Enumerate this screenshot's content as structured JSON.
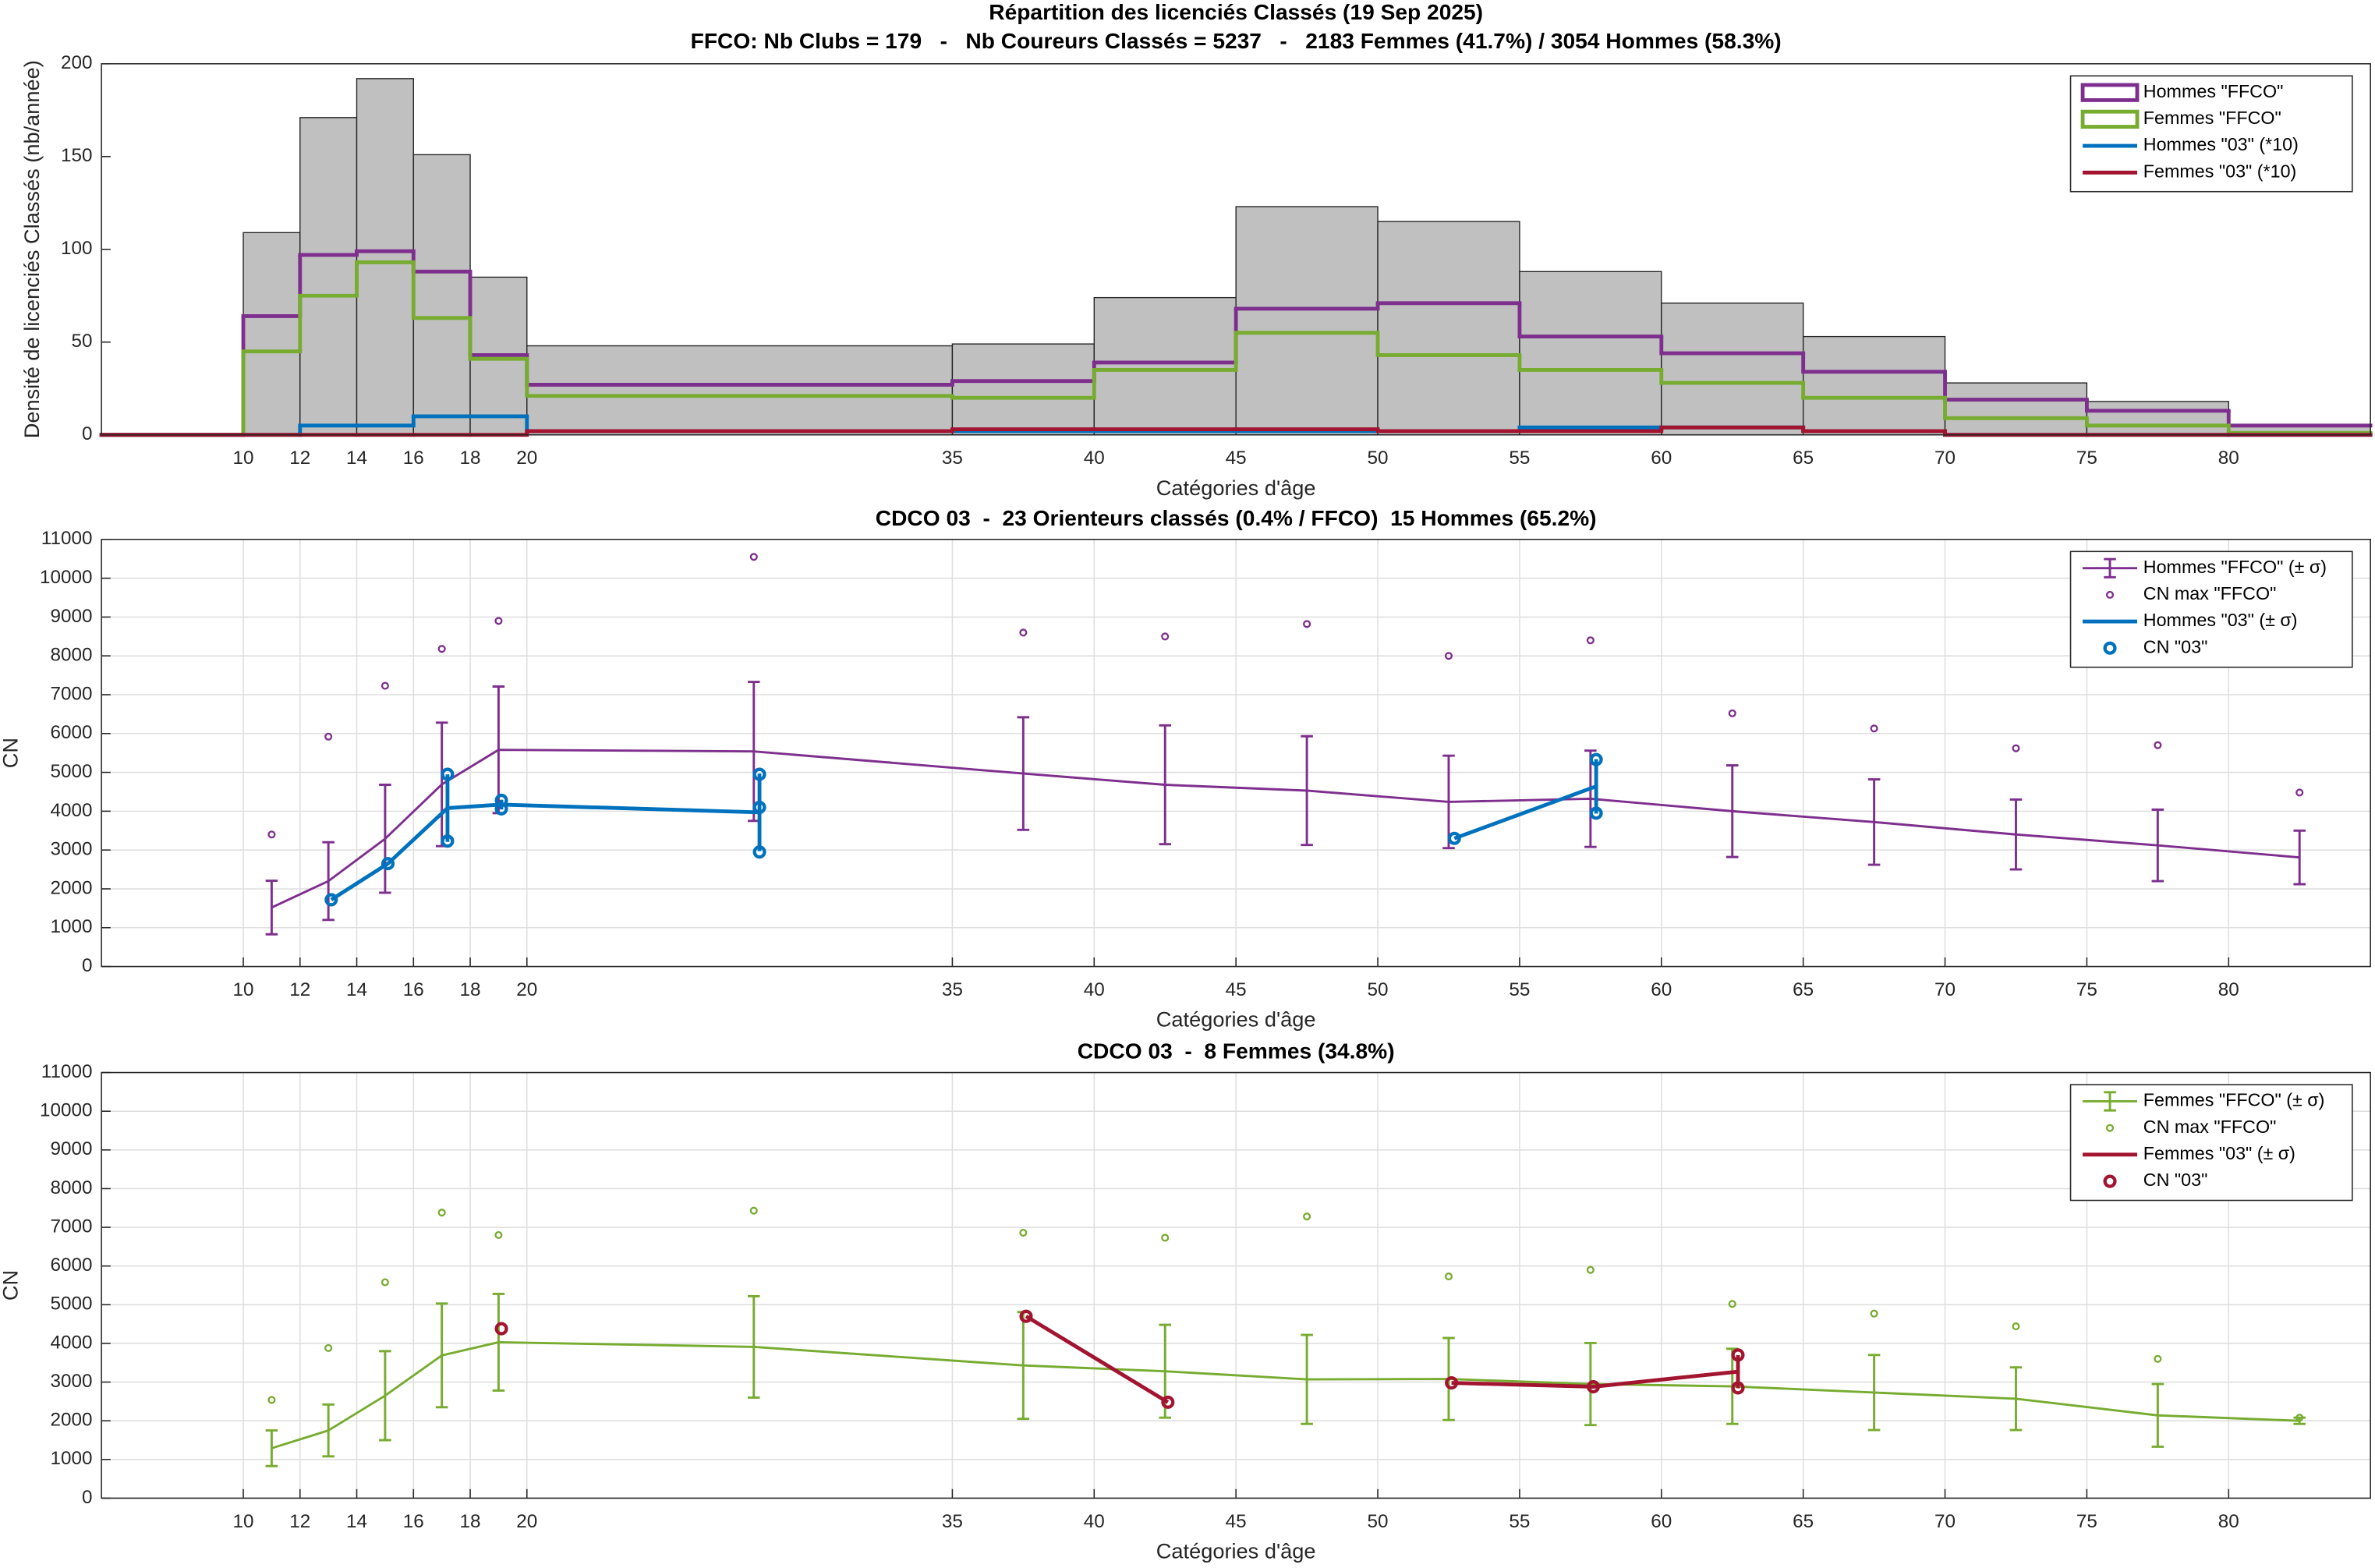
{
  "chart_data": [
    {
      "type": "histogram",
      "title": "Répartition des licenciés Classés (19 Sep 2025)",
      "subtitle": "FFCO: Nb Clubs = 179   -   Nb Coureurs Classés = 5237   -   2183 Femmes (41.7%) / 3054 Hommes (58.3%)",
      "xlabel": "Catégories d'âge",
      "ylabel": "Densité de licenciés Classés (nb/année)",
      "bins": [
        5,
        10,
        12,
        14,
        16,
        18,
        20,
        35,
        40,
        45,
        50,
        55,
        60,
        65,
        70,
        75,
        80,
        85
      ],
      "values": [
        0,
        109,
        171,
        192,
        151,
        85,
        48,
        49,
        74,
        123,
        115,
        88,
        71,
        53,
        28,
        18,
        5
      ],
      "color": "#c0c0c0",
      "series": [
        {
          "name": "Hommes \"FFCO\"",
          "color": "#7e2f8e",
          "legend_marker": "rect",
          "values": [
            0,
            64,
            97,
            99,
            88,
            43,
            27,
            29,
            39,
            68,
            71,
            53,
            44,
            34,
            19,
            13,
            5
          ]
        },
        {
          "name": "Femmes \"FFCO\"",
          "color": "#77ac30",
          "legend_marker": "rect",
          "values": [
            0,
            45,
            75,
            93,
            63,
            41,
            21,
            20,
            35,
            55,
            43,
            35,
            28,
            20,
            9,
            5,
            1
          ]
        },
        {
          "name": "Hommes \"03\" (*10)",
          "color": "#0072bd",
          "legend_marker": "line",
          "values": [
            0,
            0,
            5,
            5,
            10,
            10,
            2,
            2,
            2,
            2,
            2,
            4,
            4,
            2,
            0,
            0,
            0
          ]
        },
        {
          "name": "Femmes \"03\" (*10)",
          "color": "#a2142f",
          "legend_marker": "line",
          "values": [
            0,
            0,
            0,
            0,
            0,
            0,
            2,
            3,
            3,
            3,
            2,
            2,
            4,
            2,
            0,
            0,
            0
          ]
        }
      ],
      "xlim": [
        5,
        85
      ],
      "xticks": [
        10,
        12,
        14,
        16,
        18,
        20,
        35,
        40,
        45,
        50,
        55,
        60,
        65,
        70,
        75,
        80
      ],
      "ylim": [
        0,
        200
      ],
      "yticks": [
        0,
        50,
        100,
        150,
        200
      ],
      "grid": false,
      "legend": "northeast"
    },
    {
      "type": "errorbar",
      "title": "CDCO 03  -  23 Orienteurs classés (0.4% / FFCO)  15 Hommes (65.2%)",
      "xlabel": "Catégories d'âge",
      "ylabel": "CN",
      "series": [
        {
          "name": "Hommes \"FFCO\" (± σ)",
          "color": "#7e2f8e",
          "style": "errorbar",
          "caps": true,
          "x": [
            11,
            13,
            15,
            17,
            19,
            28,
            37.5,
            42.5,
            47.5,
            52.5,
            57.5,
            62.5,
            67.5,
            72.5,
            77.5,
            82.5
          ],
          "values": [
            1520,
            2200,
            3290,
            4690,
            5580,
            5540,
            4970,
            4680,
            4530,
            4240,
            4320,
            4000,
            3720,
            3400,
            3120,
            2810
          ],
          "errors": [
            690,
            1000,
            1390,
            1590,
            1630,
            1790,
            1450,
            1530,
            1400,
            1190,
            1240,
            1180,
            1100,
            900,
            920,
            690
          ]
        },
        {
          "name": "CN max \"FFCO\"",
          "color": "#7e2f8e",
          "style": "points",
          "x": [
            11,
            13,
            15,
            17,
            19,
            28,
            37.5,
            42.5,
            47.5,
            52.5,
            57.5,
            62.5,
            67.5,
            72.5,
            77.5,
            82.5
          ],
          "values": [
            3400,
            5920,
            7230,
            8180,
            8900,
            10550,
            8600,
            8500,
            8820,
            8000,
            8400,
            6520,
            6130,
            5620,
            5700,
            4480
          ]
        },
        {
          "name": "Hommes \"03\" (± σ)",
          "color": "#0072bd",
          "style": "errorbar",
          "caps": false,
          "x": [
            13.1,
            15.1,
            17.2,
            19.1,
            28.2,
            null,
            52.7,
            57.7
          ],
          "values": [
            1720,
            2650,
            4080,
            4170,
            3970,
            null,
            3300,
            4640
          ],
          "errors": [
            null,
            null,
            870,
            125,
            1000,
            null,
            null,
            700
          ]
        },
        {
          "name": "CN \"03\"",
          "color": "#0072bd",
          "style": "circles",
          "x": [
            13.1,
            15.1,
            17.2,
            17.2,
            19.1,
            19.1,
            28.2,
            28.2,
            28.2,
            52.7,
            57.7,
            57.7
          ],
          "values": [
            1720,
            2650,
            4950,
            3230,
            4280,
            4060,
            4950,
            4100,
            2950,
            3300,
            5330,
            3950
          ]
        }
      ],
      "xlim": [
        5,
        85
      ],
      "xticks": [
        10,
        12,
        14,
        16,
        18,
        20,
        35,
        40,
        45,
        50,
        55,
        60,
        65,
        70,
        75,
        80
      ],
      "ylim": [
        0,
        11000
      ],
      "yticks": [
        0,
        1000,
        2000,
        3000,
        4000,
        5000,
        6000,
        7000,
        8000,
        9000,
        10000,
        11000
      ],
      "grid": true,
      "legend": "northeast"
    },
    {
      "type": "errorbar",
      "title": "CDCO 03  -  8 Femmes (34.8%)",
      "xlabel": "Catégories d'âge",
      "ylabel": "CN",
      "series": [
        {
          "name": "Femmes \"FFCO\" (± σ)",
          "color": "#77ac30",
          "style": "errorbar",
          "caps": true,
          "x": [
            11,
            13,
            15,
            17,
            19,
            28,
            37.5,
            42.5,
            47.5,
            52.5,
            57.5,
            62.5,
            67.5,
            72.5,
            77.5,
            82.5
          ],
          "values": [
            1290,
            1750,
            2650,
            3690,
            4030,
            3910,
            3430,
            3280,
            3070,
            3080,
            2950,
            2890,
            2730,
            2570,
            2140,
            2000
          ],
          "errors": [
            460,
            670,
            1150,
            1340,
            1250,
            1310,
            1380,
            1200,
            1150,
            1060,
            1060,
            970,
            970,
            810,
            810,
            80
          ]
        },
        {
          "name": "CN max \"FFCO\"",
          "color": "#77ac30",
          "style": "points",
          "x": [
            11,
            13,
            15,
            17,
            19,
            28,
            37.5,
            42.5,
            47.5,
            52.5,
            57.5,
            62.5,
            67.5,
            72.5,
            77.5,
            82.5
          ],
          "values": [
            2540,
            3880,
            5580,
            7380,
            6800,
            7430,
            6860,
            6730,
            7280,
            5730,
            5900,
            5020,
            4770,
            4440,
            3600,
            2080
          ]
        },
        {
          "name": "Femmes \"03\" (± σ)",
          "color": "#a2142f",
          "style": "errorbar",
          "caps": false,
          "x": [
            19.1,
            null,
            37.6,
            42.6,
            null,
            52.6,
            57.6,
            62.7
          ],
          "values": [
            4380,
            null,
            4700,
            2480,
            null,
            2980,
            2880,
            3270
          ],
          "errors": [
            null,
            null,
            null,
            null,
            null,
            null,
            null,
            430
          ]
        },
        {
          "name": "CN \"03\"",
          "color": "#a2142f",
          "style": "circles",
          "x": [
            19.1,
            37.6,
            42.6,
            52.6,
            57.6,
            62.7,
            62.7
          ],
          "values": [
            4380,
            4700,
            2480,
            2980,
            2880,
            3700,
            2850
          ]
        }
      ],
      "xlim": [
        5,
        85
      ],
      "xticks": [
        10,
        12,
        14,
        16,
        18,
        20,
        35,
        40,
        45,
        50,
        55,
        60,
        65,
        70,
        75,
        80
      ],
      "ylim": [
        0,
        11000
      ],
      "yticks": [
        0,
        1000,
        2000,
        3000,
        4000,
        5000,
        6000,
        7000,
        8000,
        9000,
        10000,
        11000
      ],
      "grid": true,
      "legend": "northeast"
    }
  ]
}
